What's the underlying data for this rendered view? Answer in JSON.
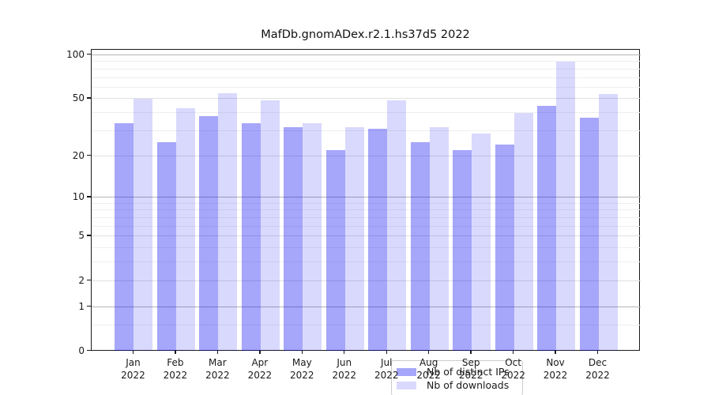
{
  "chart_data": {
    "type": "bar",
    "title": "MafDb.gnomADex.r2.1.hs37d5 2022",
    "categories": [
      "Jan 2022",
      "Feb 2022",
      "Mar 2022",
      "Apr 2022",
      "May 2022",
      "Jun 2022",
      "Jul 2022",
      "Aug 2022",
      "Sep 2022",
      "Oct 2022",
      "Nov 2022",
      "Dec 2022"
    ],
    "series": [
      {
        "name": "Nb of distinct IPs",
        "color": "rgba(0,0,240,0.35)",
        "values": [
          34,
          25,
          38,
          34,
          32,
          22,
          31,
          25,
          22,
          24,
          45,
          37
        ]
      },
      {
        "name": "Nb of downloads",
        "color": "rgba(0,0,240,0.15)",
        "values": [
          50,
          43,
          55,
          49,
          34,
          32,
          49,
          32,
          29,
          40,
          90,
          54
        ]
      }
    ],
    "xlabel": "",
    "ylabel": "",
    "yscale": "log1p",
    "ylim": [
      0,
      109
    ],
    "y_tick_labels": [
      0,
      1,
      2,
      5,
      10,
      20,
      50,
      100
    ],
    "y_emphasized_gridlines": [
      1,
      10,
      100
    ],
    "y_major_gridlines": [
      2,
      5,
      20,
      50
    ],
    "y_minor_gridlines": [
      0.5,
      3,
      4,
      6,
      7,
      8,
      9,
      30,
      40,
      60,
      70,
      80,
      90
    ],
    "grid": true,
    "legend_position": "lower center"
  }
}
